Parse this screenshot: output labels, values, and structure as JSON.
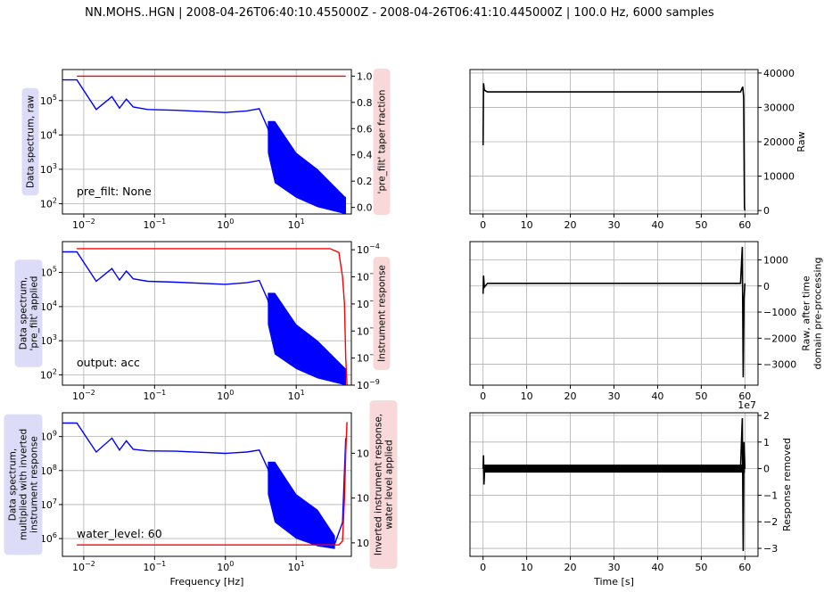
{
  "figure": {
    "title": "NN.MOHS..HGN | 2008-04-26T06:40:10.455000Z - 2008-04-26T06:41:10.445000Z | 100.0 Hz, 6000 samples"
  },
  "colors": {
    "spectrum": "#0000ff",
    "response": "#ff0000",
    "trace": "#000000",
    "grid": "#b0b0b0",
    "left_box": "#dcdcf8",
    "right_box": "#f8d8d8"
  },
  "chart_data": [
    {
      "id": "spec1",
      "type": "line",
      "xscale": "log",
      "yscale": "log",
      "xlim": [
        0.005,
        60
      ],
      "ylim": [
        50,
        800000
      ],
      "grid": true,
      "ylabel": "Data spectrum, raw",
      "annotation": "pre_filt: None",
      "xticklabels": [
        "10^-2",
        "10^-1",
        "10^0",
        "10^1"
      ],
      "yticklabels": [
        "10^2",
        "10^3",
        "10^4",
        "10^5"
      ],
      "series": [
        {
          "color": "blue",
          "points": [
            [
              0.005,
              400000
            ],
            [
              0.008,
              400000
            ],
            [
              0.015,
              55000
            ],
            [
              0.025,
              130000
            ],
            [
              0.032,
              60000
            ],
            [
              0.04,
              110000
            ],
            [
              0.05,
              65000
            ],
            [
              0.08,
              55000
            ],
            [
              0.2,
              52000
            ],
            [
              1,
              45000
            ],
            [
              2,
              50000
            ],
            [
              3,
              58000
            ],
            [
              4,
              15000
            ],
            [
              5,
              1500
            ],
            [
              10,
              800
            ],
            [
              20,
              300
            ],
            [
              50,
              150
            ]
          ],
          "upper": [
            [
              4,
              25000
            ],
            [
              5,
              25000
            ],
            [
              10,
              3000
            ],
            [
              20,
              1000
            ],
            [
              50,
              150
            ]
          ],
          "lower": [
            [
              4,
              3000
            ],
            [
              5,
              400
            ],
            [
              10,
              150
            ],
            [
              20,
              80
            ],
            [
              50,
              50
            ]
          ]
        }
      ],
      "twin": {
        "ylabel": "'pre_filt' taper fraction",
        "ylim": [
          -0.05,
          1.05
        ],
        "ticks": [
          0.0,
          0.2,
          0.4,
          0.6,
          0.8,
          1.0
        ],
        "ticklabels": [
          "0.0",
          "0.2",
          "0.4",
          "0.6",
          "0.8",
          "1.0"
        ],
        "series": [
          {
            "color": "red",
            "points": [
              [
                0.008,
                1.0
              ],
              [
                50,
                1.0
              ]
            ]
          }
        ]
      }
    },
    {
      "id": "spec2",
      "type": "line",
      "xscale": "log",
      "yscale": "log",
      "xlim": [
        0.005,
        60
      ],
      "ylim": [
        50,
        800000
      ],
      "grid": true,
      "ylabel": "Data spectrum,\n'pre_filt' applied",
      "annotation": "output: acc",
      "xticklabels": [
        "10^-2",
        "10^-1",
        "10^0",
        "10^1"
      ],
      "yticklabels": [
        "10^2",
        "10^3",
        "10^4",
        "10^5"
      ],
      "series": [
        {
          "color": "blue",
          "points": [
            [
              0.005,
              400000
            ],
            [
              0.008,
              400000
            ],
            [
              0.015,
              55000
            ],
            [
              0.025,
              130000
            ],
            [
              0.032,
              60000
            ],
            [
              0.04,
              110000
            ],
            [
              0.05,
              65000
            ],
            [
              0.08,
              55000
            ],
            [
              0.2,
              52000
            ],
            [
              1,
              45000
            ],
            [
              2,
              50000
            ],
            [
              3,
              58000
            ],
            [
              4,
              15000
            ],
            [
              5,
              1500
            ],
            [
              10,
              800
            ],
            [
              20,
              300
            ],
            [
              40,
              100
            ],
            [
              50,
              60
            ]
          ],
          "upper": [
            [
              4,
              25000
            ],
            [
              5,
              25000
            ],
            [
              10,
              3000
            ],
            [
              20,
              1000
            ],
            [
              50,
              150
            ]
          ],
          "lower": [
            [
              4,
              3000
            ],
            [
              5,
              400
            ],
            [
              10,
              150
            ],
            [
              20,
              80
            ],
            [
              50,
              50
            ]
          ]
        }
      ],
      "twin": {
        "ylabel": "Instrument response",
        "ylim": [
          1e-09,
          0.0002
        ],
        "scale": "log",
        "ticklabels": [
          "10^-9",
          "10^-8",
          "10^-7",
          "10^-6",
          "10^-5",
          "10^-4"
        ],
        "series": [
          {
            "color": "red",
            "points": [
              [
                0.008,
                0.00011
              ],
              [
                30,
                0.00011
              ],
              [
                40,
                8e-05
              ],
              [
                45,
                1e-05
              ],
              [
                48,
                1e-06
              ],
              [
                50,
                1e-08
              ],
              [
                52,
                1e-09
              ]
            ]
          }
        ]
      }
    },
    {
      "id": "spec3",
      "type": "line",
      "xscale": "log",
      "yscale": "log",
      "xlim": [
        0.005,
        60
      ],
      "ylim": [
        300000,
        5000000000
      ],
      "grid": true,
      "ylabel": "Data spectrum,\nmultiplied with inverted\ninstrument response",
      "annotation": "water_level: 60",
      "xticklabels": [
        "10^-2",
        "10^-1",
        "10^0",
        "10^1"
      ],
      "xlabel": "Frequency [Hz]",
      "yticklabels": [
        "10^6",
        "10^7",
        "10^8",
        "10^9"
      ],
      "series": [
        {
          "color": "blue",
          "points": [
            [
              0.005,
              2500000000
            ],
            [
              0.008,
              2500000000
            ],
            [
              0.015,
              350000000
            ],
            [
              0.025,
              900000000
            ],
            [
              0.032,
              400000000
            ],
            [
              0.04,
              750000000
            ],
            [
              0.05,
              420000000
            ],
            [
              0.08,
              380000000
            ],
            [
              0.2,
              370000000
            ],
            [
              1,
              320000000
            ],
            [
              2,
              350000000
            ],
            [
              3,
              400000000
            ],
            [
              4,
              110000000
            ],
            [
              5,
              12000000
            ],
            [
              10,
              6000000
            ],
            [
              20,
              2000000
            ],
            [
              35,
              700000
            ],
            [
              45,
              3000000
            ],
            [
              50,
              900000000
            ]
          ],
          "upper": [
            [
              4,
              180000000
            ],
            [
              5,
              180000000
            ],
            [
              10,
              20000000
            ],
            [
              20,
              7000000
            ],
            [
              35,
              1200000
            ]
          ],
          "lower": [
            [
              4,
              20000000
            ],
            [
              5,
              3000000
            ],
            [
              10,
              1000000
            ],
            [
              20,
              600000
            ],
            [
              35,
              500000
            ]
          ]
        }
      ],
      "twin": {
        "ylabel": "Inverted instrument response,\nwater level applied",
        "scale": "log",
        "ylim": [
          5000,
          8000000
        ],
        "ticklabels": [
          "10^4",
          "10^5",
          "10^6"
        ],
        "series": [
          {
            "color": "red",
            "points": [
              [
                0.008,
                9000
              ],
              [
                40,
                9000
              ],
              [
                45,
                11000
              ],
              [
                48,
                100000
              ],
              [
                50,
                1000000
              ],
              [
                52,
                5000000
              ]
            ]
          }
        ]
      }
    },
    {
      "id": "trace1",
      "type": "line",
      "xlim": [
        -3,
        63
      ],
      "ylim": [
        -1000,
        41000
      ],
      "grid": true,
      "xticklabels": [
        "0",
        "10",
        "20",
        "30",
        "40",
        "50",
        "60"
      ],
      "ylabel": "Raw",
      "yticks": [
        0,
        10000,
        20000,
        30000,
        40000
      ],
      "yticklabels": [
        "0",
        "10000",
        "20000",
        "30000",
        "40000"
      ],
      "series": [
        {
          "color": "black",
          "points": [
            [
              0,
              19000
            ],
            [
              0.1,
              37000
            ],
            [
              0.3,
              35000
            ],
            [
              1,
              34500
            ],
            [
              59,
              34500
            ],
            [
              59.5,
              36000
            ],
            [
              59.7,
              33000
            ],
            [
              59.9,
              1000
            ],
            [
              60,
              0
            ]
          ]
        }
      ]
    },
    {
      "id": "trace2",
      "type": "line",
      "xlim": [
        -3,
        63
      ],
      "ylim": [
        -3800,
        1700
      ],
      "grid": true,
      "xticklabels": [
        "0",
        "10",
        "20",
        "30",
        "40",
        "50",
        "60"
      ],
      "ylabel": "Raw, after time\ndomain pre-processing",
      "yticks": [
        -3000,
        -2000,
        -1000,
        0,
        1000
      ],
      "yticklabels": [
        "−3000",
        "−2000",
        "−1000",
        "0",
        "1000"
      ],
      "series": [
        {
          "color": "black",
          "points": [
            [
              0,
              -300
            ],
            [
              0.1,
              400
            ],
            [
              0.3,
              -50
            ],
            [
              1,
              100
            ],
            [
              59,
              100
            ],
            [
              59.4,
              1500
            ],
            [
              59.6,
              -3500
            ],
            [
              59.8,
              -500
            ],
            [
              60,
              100
            ]
          ]
        }
      ]
    },
    {
      "id": "trace3",
      "type": "line",
      "xlim": [
        -3,
        63
      ],
      "ylim": [
        -3.3,
        2.1
      ],
      "grid": true,
      "xticklabels": [
        "0",
        "10",
        "20",
        "30",
        "40",
        "50",
        "60"
      ],
      "xlabel": "Time [s]",
      "scale_label": "1e7",
      "ylabel": "Response removed",
      "yticks": [
        -3,
        -2,
        -1,
        0,
        1,
        2
      ],
      "yticklabels": [
        "−3",
        "−2",
        "−1",
        "0",
        "1",
        "2"
      ],
      "series": [
        {
          "color": "black",
          "points": [
            [
              0,
              0
            ],
            [
              0.1,
              0.5
            ],
            [
              0.2,
              -0.6
            ],
            [
              0.4,
              0.1
            ],
            [
              1,
              0
            ],
            [
              59,
              0
            ],
            [
              59.4,
              1.9
            ],
            [
              59.6,
              -3.1
            ],
            [
              59.8,
              1.0
            ],
            [
              60,
              0
            ]
          ]
        }
      ]
    }
  ]
}
